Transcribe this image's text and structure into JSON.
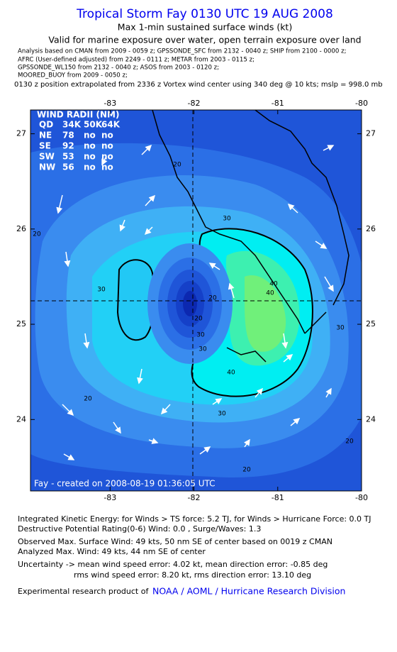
{
  "header": {
    "title": "Tropical Storm Fay 0130 UTC 19 AUG 2008",
    "subtitle": "Max 1-min sustained surface winds (kt)",
    "validity": "Valid for marine exposure over water, open terrain exposure over land",
    "sources": [
      "Analysis based on  CMAN from 2009 - 0059 z;  GPSSONDE_SFC from 2132 - 0040 z;  SHIP from 2100 - 0000 z;",
      "AFRC (User-defined adjusted) from  2249 - 0111 z;  METAR from 2003 - 0115 z;",
      "GPSSONDE_WL150 from 2132 - 0040 z;  ASOS from 2003 - 0120 z;",
      "MOORED_BUOY from 2009 - 0050 z;"
    ],
    "position_note": "0130 z position extrapolated from 2336 z Vortex wind center using 340 deg @ 10 kts; mslp = 998.0 mb"
  },
  "map": {
    "xlim": [
      -83.95,
      -80
    ],
    "ylim": [
      23.25,
      27.25
    ],
    "xticks": [
      -83,
      -82,
      -81,
      -80
    ],
    "yticks": [
      24,
      25,
      26,
      27
    ],
    "contour_labels": [
      "20",
      "20",
      "30",
      "20",
      "30",
      "40",
      "40",
      "30",
      "20",
      "30",
      "20",
      "20",
      "20",
      "30",
      "40",
      "30"
    ],
    "wind_radii": {
      "title": "WIND RADII (NM)",
      "rows": [
        [
          "QD",
          "34K",
          "50K",
          "64K"
        ],
        [
          "NE",
          "78",
          "no",
          "no"
        ],
        [
          "SE",
          "92",
          "no",
          "no"
        ],
        [
          "SW",
          "53",
          "no",
          "no"
        ],
        [
          "NW",
          "56",
          "no",
          "no"
        ]
      ]
    },
    "credit": "Fay - created on 2008-08-19 01:36:05 UTC"
  },
  "footer": {
    "lines": [
      "Integrated Kinetic Energy:  for Winds > TS force: 5.2 TJ,  for Winds > Hurricane Force: 0.0 TJ",
      "Destructive Potential Rating(0-6)   Wind: 0.0 , Surge/Waves: 1.3",
      "Observed Max. Surface Wind: 49 kts, 50 nm SE of center based on 0019 z CMAN",
      "Analyzed Max. Wind: 49 kts, 44 nm SE of center",
      "Uncertainty -> mean wind speed error: 4.02 kt,   mean direction error:  -0.85 deg",
      "rms wind speed error: 8.20 kt,   rms direction error: 13.10 deg"
    ],
    "credit_prefix": "Experimental research product of",
    "credit_link": "NOAA / AOML / Hurricane Research Division"
  }
}
